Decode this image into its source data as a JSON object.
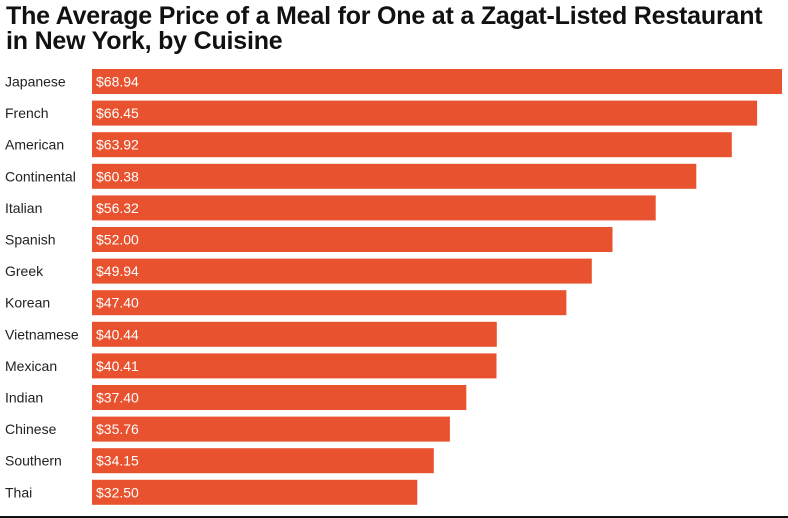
{
  "colors": {
    "bar": "#E8522E",
    "label_text": "#222222",
    "value_text": "#ffffff",
    "title_text": "#111111"
  },
  "chart_data": {
    "type": "bar",
    "orientation": "horizontal",
    "title": "The Average Price of a Meal for One at a Zagat-Listed Restaurant in New York, by Cuisine",
    "xlabel": "",
    "ylabel": "",
    "xlim": [
      0,
      68.94
    ],
    "grid": false,
    "legend": "none",
    "value_format": "$",
    "categories": [
      "Japanese",
      "French",
      "American",
      "Continental",
      "Italian",
      "Spanish",
      "Greek",
      "Korean",
      "Vietnamese",
      "Mexican",
      "Indian",
      "Chinese",
      "Southern",
      "Thai"
    ],
    "values": [
      68.94,
      66.45,
      63.92,
      60.38,
      56.32,
      52.0,
      49.94,
      47.4,
      40.44,
      40.41,
      37.4,
      35.76,
      34.15,
      32.5
    ],
    "value_labels": [
      "$68.94",
      "$66.45",
      "$63.92",
      "$60.38",
      "$56.32",
      "$52.00",
      "$49.94",
      "$47.40",
      "$40.44",
      "$40.41",
      "$37.40",
      "$35.76",
      "$34.15",
      "$32.50"
    ]
  }
}
